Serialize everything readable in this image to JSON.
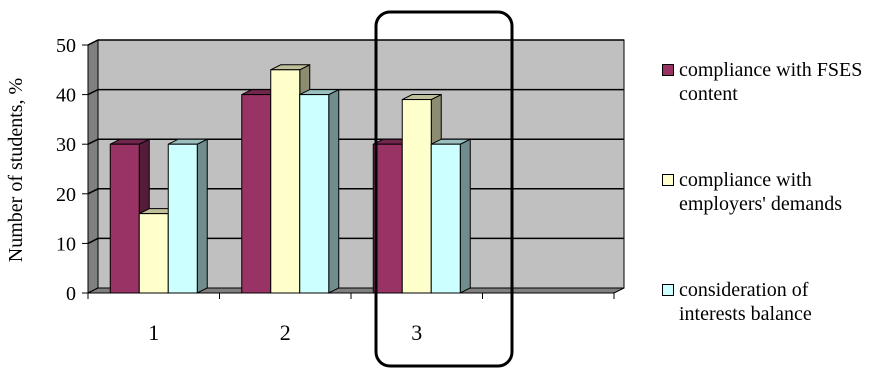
{
  "chart_data": {
    "type": "bar",
    "categories": [
      "1",
      "2",
      "3"
    ],
    "series": [
      {
        "name": "compliance with FSES content",
        "values": [
          30,
          40,
          30
        ],
        "color": "#993366"
      },
      {
        "name": "compliance with employers' demands",
        "values": [
          16,
          45,
          39
        ],
        "color": "#ffffcc"
      },
      {
        "name": "consideration of interests balance",
        "values": [
          30,
          40,
          30
        ],
        "color": "#ccffff"
      }
    ],
    "ylabel": "Number of students, %",
    "ylim": [
      0,
      50
    ],
    "yticks": [
      "0",
      "10",
      "20",
      "30",
      "40",
      "50"
    ],
    "grid": true,
    "legend_position": "right",
    "highlight_category": "3"
  }
}
